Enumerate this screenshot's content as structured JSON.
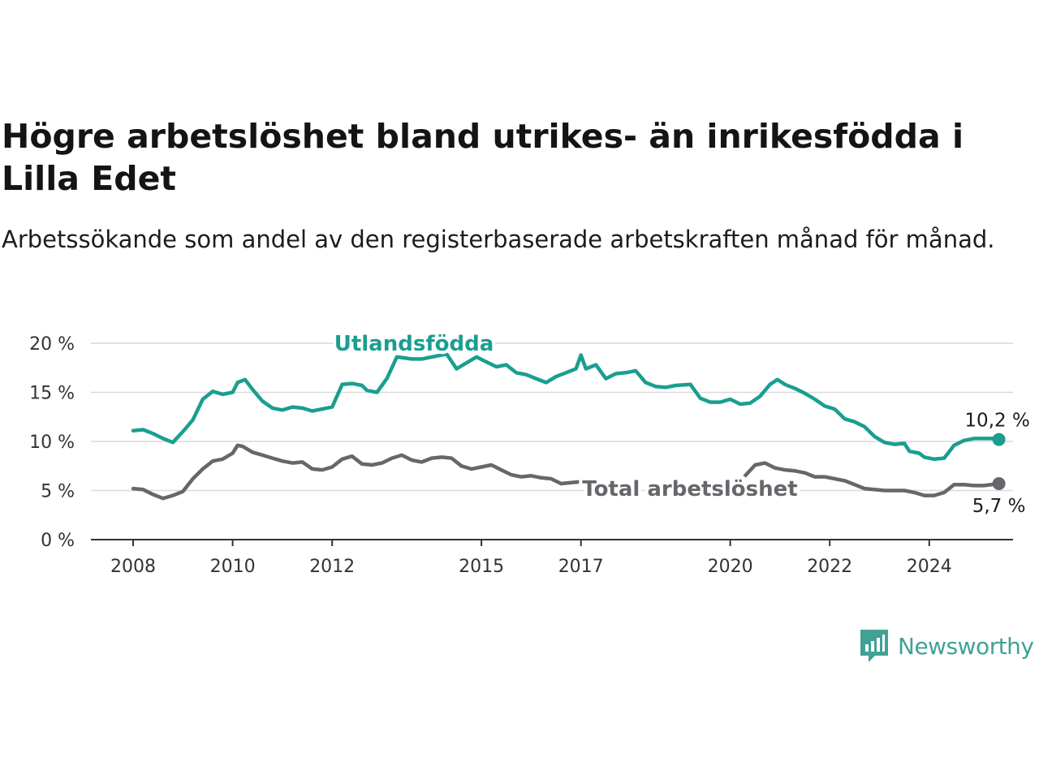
{
  "title": "Högre arbetslöshet bland utrikes- än inrikesfödda i Lilla Edet",
  "subtitle": "Arbetssökande som andel av den registerbaserade arbetskraften månad för månad.",
  "brand": {
    "name": "Newsworthy",
    "color": "#41a195",
    "icon": "newsworthy-logo-icon"
  },
  "chart_data": {
    "type": "line",
    "title": "Högre arbetslöshet bland utrikes- än inrikesfödda i Lilla Edet",
    "subtitle": "Arbetssökande som andel av den registerbaserade arbetskraften månad för månad.",
    "xlabel": "",
    "ylabel": "",
    "xlim": [
      2008,
      2025.6
    ],
    "ylim": [
      0,
      20
    ],
    "y_ticks": [
      0,
      5,
      10,
      15,
      20
    ],
    "y_tick_labels": [
      "0 %",
      "5 %",
      "10 %",
      "15 %",
      "20 %"
    ],
    "x_ticks": [
      2008,
      2010,
      2012,
      2015,
      2017,
      2020,
      2022,
      2024
    ],
    "x_tick_labels": [
      "2008",
      "2010",
      "2012",
      "2015",
      "2017",
      "2020",
      "2022",
      "2024"
    ],
    "grid": true,
    "legend": "none",
    "series": [
      {
        "name": "Utlandsfödda",
        "color": "#1a9e8f",
        "end_label": "10,2 %",
        "points": [
          [
            2008.0,
            11.1
          ],
          [
            2008.2,
            11.2
          ],
          [
            2008.4,
            10.8
          ],
          [
            2008.6,
            10.3
          ],
          [
            2008.8,
            9.9
          ],
          [
            2009.0,
            11.0
          ],
          [
            2009.2,
            12.2
          ],
          [
            2009.4,
            14.3
          ],
          [
            2009.6,
            15.1
          ],
          [
            2009.8,
            14.8
          ],
          [
            2010.0,
            15.0
          ],
          [
            2010.1,
            16.0
          ],
          [
            2010.25,
            16.3
          ],
          [
            2010.4,
            15.3
          ],
          [
            2010.6,
            14.1
          ],
          [
            2010.8,
            13.4
          ],
          [
            2011.0,
            13.2
          ],
          [
            2011.2,
            13.5
          ],
          [
            2011.4,
            13.4
          ],
          [
            2011.6,
            13.1
          ],
          [
            2011.8,
            13.3
          ],
          [
            2012.0,
            13.5
          ],
          [
            2012.2,
            15.8
          ],
          [
            2012.4,
            15.9
          ],
          [
            2012.6,
            15.7
          ],
          [
            2012.7,
            15.2
          ],
          [
            2012.9,
            15.0
          ],
          [
            2013.1,
            16.4
          ],
          [
            2013.3,
            18.6
          ],
          [
            2013.6,
            18.4
          ],
          [
            2013.8,
            18.4
          ],
          [
            2014.0,
            18.6
          ],
          [
            2014.3,
            18.9
          ],
          [
            2014.5,
            17.4
          ],
          [
            2014.7,
            18.0
          ],
          [
            2014.9,
            18.6
          ],
          [
            2015.1,
            18.1
          ],
          [
            2015.3,
            17.6
          ],
          [
            2015.5,
            17.8
          ],
          [
            2015.7,
            17.0
          ],
          [
            2015.9,
            16.8
          ],
          [
            2016.1,
            16.4
          ],
          [
            2016.3,
            16.0
          ],
          [
            2016.5,
            16.6
          ],
          [
            2016.7,
            17.0
          ],
          [
            2016.9,
            17.4
          ],
          [
            2017.0,
            18.8
          ],
          [
            2017.1,
            17.4
          ],
          [
            2017.3,
            17.8
          ],
          [
            2017.5,
            16.4
          ],
          [
            2017.7,
            16.9
          ],
          [
            2017.9,
            17.0
          ],
          [
            2018.1,
            17.2
          ],
          [
            2018.3,
            16.0
          ],
          [
            2018.5,
            15.6
          ],
          [
            2018.7,
            15.5
          ],
          [
            2018.9,
            15.7
          ],
          [
            2019.2,
            15.8
          ],
          [
            2019.4,
            14.4
          ],
          [
            2019.6,
            14.0
          ],
          [
            2019.8,
            14.0
          ],
          [
            2020.0,
            14.3
          ],
          [
            2020.2,
            13.8
          ],
          [
            2020.4,
            13.9
          ],
          [
            2020.6,
            14.6
          ],
          [
            2020.8,
            15.8
          ],
          [
            2020.95,
            16.3
          ],
          [
            2021.1,
            15.8
          ],
          [
            2021.3,
            15.4
          ],
          [
            2021.5,
            14.9
          ],
          [
            2021.7,
            14.3
          ],
          [
            2021.9,
            13.6
          ],
          [
            2022.1,
            13.3
          ],
          [
            2022.3,
            12.3
          ],
          [
            2022.5,
            12.0
          ],
          [
            2022.7,
            11.5
          ],
          [
            2022.9,
            10.5
          ],
          [
            2023.1,
            9.9
          ],
          [
            2023.3,
            9.7
          ],
          [
            2023.5,
            9.8
          ],
          [
            2023.6,
            9.0
          ],
          [
            2023.8,
            8.8
          ],
          [
            2023.9,
            8.4
          ],
          [
            2024.1,
            8.2
          ],
          [
            2024.3,
            8.3
          ],
          [
            2024.5,
            9.6
          ],
          [
            2024.7,
            10.1
          ],
          [
            2024.9,
            10.3
          ],
          [
            2025.1,
            10.3
          ],
          [
            2025.3,
            10.3
          ],
          [
            2025.4,
            10.2
          ]
        ]
      },
      {
        "name": "Total arbetslöshet",
        "color": "#67666b",
        "end_label": "5,7 %",
        "points": [
          [
            2008.0,
            5.2
          ],
          [
            2008.2,
            5.1
          ],
          [
            2008.4,
            4.6
          ],
          [
            2008.6,
            4.2
          ],
          [
            2008.8,
            4.5
          ],
          [
            2009.0,
            4.9
          ],
          [
            2009.2,
            6.2
          ],
          [
            2009.4,
            7.2
          ],
          [
            2009.6,
            8.0
          ],
          [
            2009.8,
            8.2
          ],
          [
            2010.0,
            8.8
          ],
          [
            2010.1,
            9.6
          ],
          [
            2010.2,
            9.5
          ],
          [
            2010.4,
            8.9
          ],
          [
            2010.6,
            8.6
          ],
          [
            2010.8,
            8.3
          ],
          [
            2011.0,
            8.0
          ],
          [
            2011.2,
            7.8
          ],
          [
            2011.4,
            7.9
          ],
          [
            2011.6,
            7.2
          ],
          [
            2011.8,
            7.1
          ],
          [
            2012.0,
            7.4
          ],
          [
            2012.2,
            8.2
          ],
          [
            2012.4,
            8.5
          ],
          [
            2012.6,
            7.7
          ],
          [
            2012.8,
            7.6
          ],
          [
            2013.0,
            7.8
          ],
          [
            2013.2,
            8.3
          ],
          [
            2013.4,
            8.6
          ],
          [
            2013.6,
            8.1
          ],
          [
            2013.8,
            7.9
          ],
          [
            2014.0,
            8.3
          ],
          [
            2014.2,
            8.4
          ],
          [
            2014.4,
            8.3
          ],
          [
            2014.6,
            7.5
          ],
          [
            2014.8,
            7.2
          ],
          [
            2015.0,
            7.4
          ],
          [
            2015.2,
            7.6
          ],
          [
            2015.4,
            7.1
          ],
          [
            2015.6,
            6.6
          ],
          [
            2015.8,
            6.4
          ],
          [
            2016.0,
            6.5
          ],
          [
            2016.2,
            6.3
          ],
          [
            2016.4,
            6.2
          ],
          [
            2016.6,
            5.7
          ],
          [
            2016.8,
            5.8
          ],
          [
            2017.0,
            5.9
          ],
          [
            2017.1,
            6.1
          ],
          [
            2020.3,
            6.5
          ],
          [
            2020.5,
            7.6
          ],
          [
            2020.7,
            7.8
          ],
          [
            2020.9,
            7.3
          ],
          [
            2021.1,
            7.1
          ],
          [
            2021.3,
            7.0
          ],
          [
            2021.5,
            6.8
          ],
          [
            2021.7,
            6.4
          ],
          [
            2021.9,
            6.4
          ],
          [
            2022.1,
            6.2
          ],
          [
            2022.3,
            6.0
          ],
          [
            2022.5,
            5.6
          ],
          [
            2022.7,
            5.2
          ],
          [
            2022.9,
            5.1
          ],
          [
            2023.1,
            5.0
          ],
          [
            2023.3,
            5.0
          ],
          [
            2023.5,
            5.0
          ],
          [
            2023.7,
            4.8
          ],
          [
            2023.9,
            4.5
          ],
          [
            2024.1,
            4.5
          ],
          [
            2024.3,
            4.8
          ],
          [
            2024.5,
            5.6
          ],
          [
            2024.7,
            5.6
          ],
          [
            2024.9,
            5.5
          ],
          [
            2025.1,
            5.5
          ],
          [
            2025.4,
            5.7
          ]
        ]
      }
    ]
  }
}
